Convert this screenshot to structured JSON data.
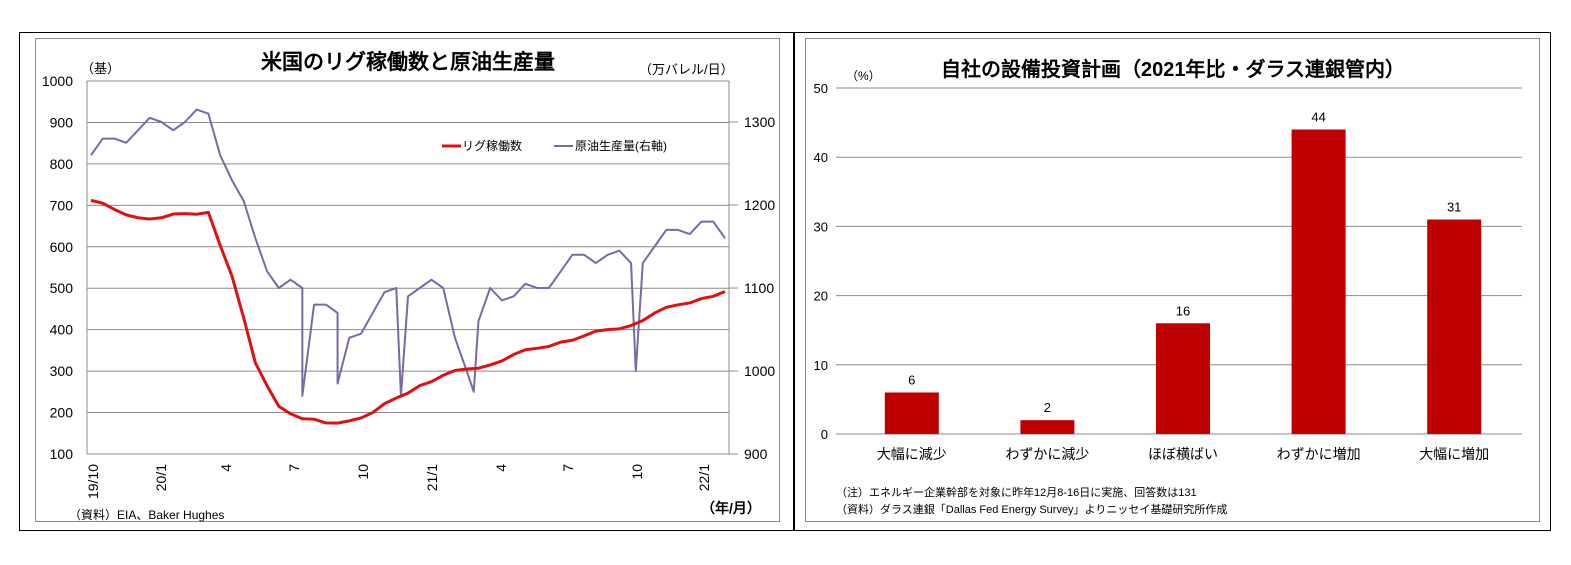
{
  "left_chart": {
    "title": "米国のリグ稼働数と原油生産量",
    "left_unit": "（基）",
    "right_unit": "（万バレル/日）",
    "x_unit": "（年/月）",
    "source": "（資料）EIA、Baker Hughes",
    "left_ticks": [
      "1000",
      "900",
      "800",
      "700",
      "600",
      "500",
      "400",
      "300",
      "200",
      "100"
    ],
    "right_ticks": [
      "1300",
      "1200",
      "1100",
      "1000",
      "900"
    ],
    "x_ticks": [
      "19/10",
      "20/1",
      "4",
      "7",
      "10",
      "21/1",
      "4",
      "7",
      "10",
      "22/1"
    ],
    "legend": {
      "rig": "リグ稼働数",
      "oil": "原油生産量(右軸)"
    },
    "colors": {
      "rig": "#e01010",
      "oil": "#7b68a6",
      "grid": "#8c8c8c"
    }
  },
  "right_chart": {
    "title": "自社の設備投資計画（2021年比・ダラス連銀管内）",
    "unit": "（%）",
    "y_ticks": [
      "50",
      "40",
      "30",
      "20",
      "10",
      "0"
    ],
    "categories": [
      "大幅に減少",
      "わずかに減少",
      "ほぼ横ばい",
      "わずかに増加",
      "大幅に増加"
    ],
    "value_labels": [
      "6",
      "2",
      "16",
      "44",
      "31"
    ],
    "note1": "（注）エネルギー企業幹部を対象に昨年12月8-16日に実施、回答数は131",
    "note2": "（資料）ダラス連銀「Dallas Fed Energy Survey」よりニッセイ基礎研究所作成",
    "bar_color": "#c00000"
  },
  "chart_data": [
    {
      "type": "line",
      "title": "米国のリグ稼働数と原油生産量",
      "xlabel": "（年/月）",
      "ylabel": "（基）",
      "y2label": "（万バレル/日）",
      "ylim": [
        100,
        1000
      ],
      "y2lim": [
        900,
        1300
      ],
      "x_tick_labels": [
        "19/10",
        "20/1",
        "4",
        "7",
        "10",
        "21/1",
        "4",
        "7",
        "10",
        "22/1"
      ],
      "legend_position": "upper right",
      "grid": true,
      "series": [
        {
          "name": "リグ稼働数",
          "axis": "left",
          "approx_monthly": {
            "x": [
              "19/10",
              "19/11",
              "19/12",
              "20/1",
              "20/2",
              "20/3",
              "20/4",
              "20/5",
              "20/6",
              "20/7",
              "20/8",
              "20/9",
              "20/10",
              "20/11",
              "20/12",
              "21/1",
              "21/2",
              "21/3",
              "21/4",
              "21/5",
              "21/6",
              "21/7",
              "21/8",
              "21/9",
              "21/10",
              "21/11",
              "21/12",
              "22/1"
            ],
            "values": [
              712,
              690,
              670,
              670,
              680,
              683,
              530,
              320,
              215,
              185,
              175,
              180,
              200,
              235,
              265,
              290,
              305,
              315,
              340,
              355,
              370,
              385,
              400,
              410,
              440,
              460,
              475,
              492
            ]
          }
        },
        {
          "name": "原油生産量(右軸)",
          "axis": "right",
          "approx_monthly": {
            "x": [
              "19/10",
              "19/11",
              "19/12",
              "20/1",
              "20/2",
              "20/3",
              "20/4",
              "20/5",
              "20/6",
              "20/7",
              "20/8",
              "20/9",
              "20/10",
              "20/11",
              "20/12",
              "21/1",
              "21/2",
              "21/3",
              "21/4",
              "21/5",
              "21/6",
              "21/7",
              "21/8",
              "21/9",
              "21/10",
              "21/11",
              "21/12",
              "22/1"
            ],
            "values": [
              1260,
              1280,
              1290,
              1300,
              1300,
              1310,
              1230,
              1160,
              1100,
              1100,
              1080,
              1040,
              1070,
              1100,
              1100,
              1100,
              1000,
              1100,
              1090,
              1100,
              1120,
              1140,
              1140,
              1130,
              1150,
              1170,
              1180,
              1160
            ]
          }
        }
      ]
    },
    {
      "type": "bar",
      "title": "自社の設備投資計画（2021年比・ダラス連銀管内）",
      "categories": [
        "大幅に減少",
        "わずかに減少",
        "ほぼ横ばい",
        "わずかに増加",
        "大幅に増加"
      ],
      "values": [
        6,
        2,
        16,
        44,
        31
      ],
      "xlabel": "",
      "ylabel": "（%）",
      "ylim": [
        0,
        50
      ],
      "grid": true
    }
  ]
}
